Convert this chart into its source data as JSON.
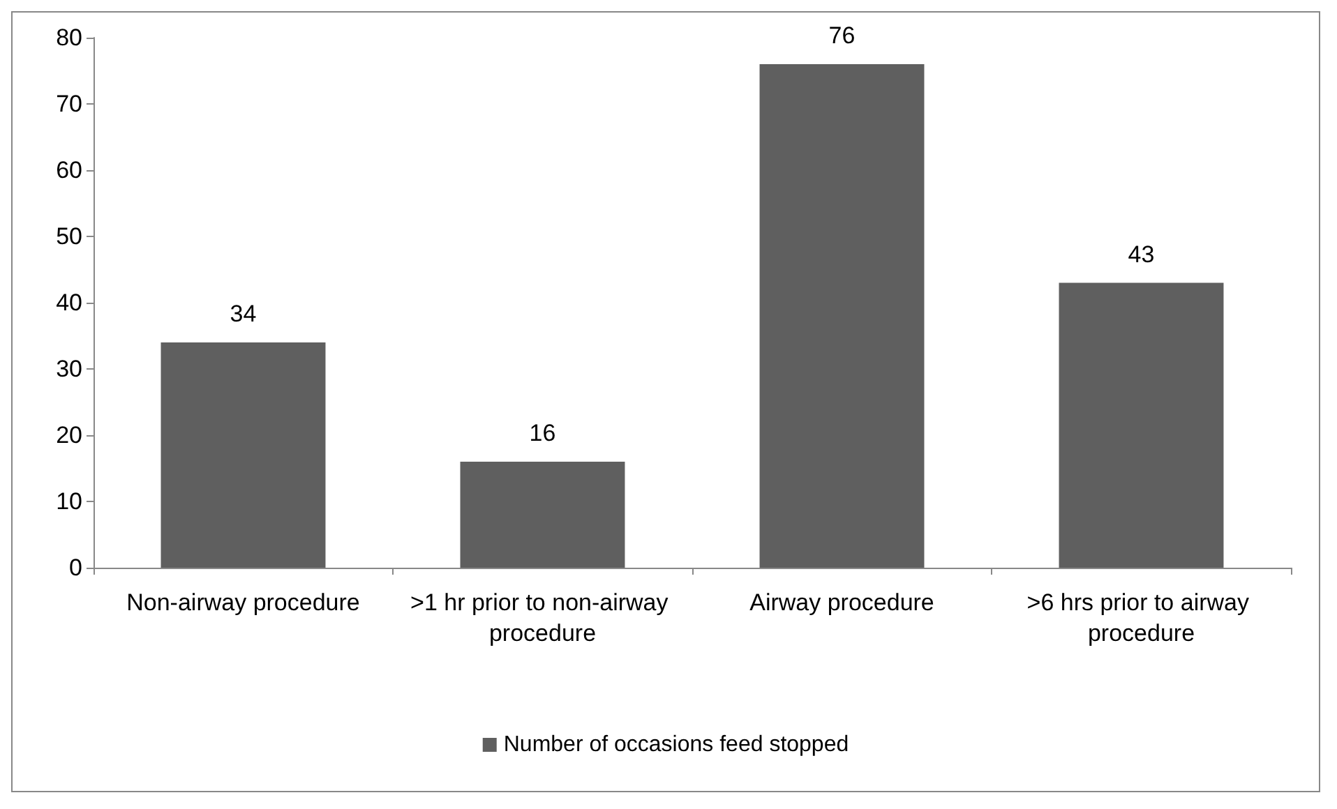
{
  "chart_data": {
    "type": "bar",
    "categories": [
      "Non-airway procedure",
      ">1 hr prior to non-airway procedure",
      "Airway procedure",
      ">6 hrs prior to airway procedure"
    ],
    "series": [
      {
        "name": "Number of occasions feed stopped",
        "color": "#5f5f5f",
        "values": [
          34,
          16,
          76,
          43
        ]
      }
    ],
    "ylim": [
      0,
      80
    ],
    "yticks": [
      0,
      10,
      20,
      30,
      40,
      50,
      60,
      70,
      80
    ],
    "grid": false,
    "legend": "bottom",
    "data_labels": true
  }
}
